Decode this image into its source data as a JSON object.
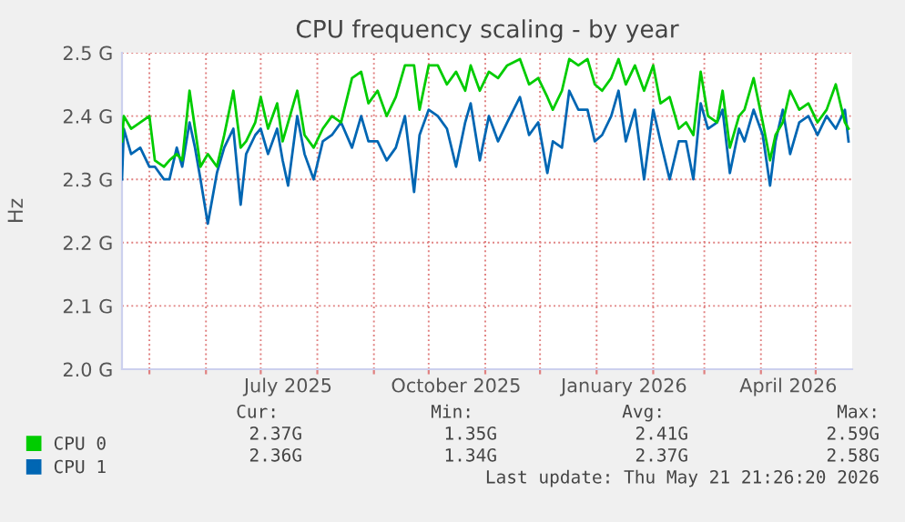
{
  "chart_data": {
    "type": "line",
    "title": "CPU frequency scaling - by year",
    "ylabel": "Hz",
    "x": [
      "2025-04-16",
      "2025-04-17",
      "2025-04-21",
      "2025-04-26",
      "2025-05-01",
      "2025-05-04",
      "2025-05-09",
      "2025-05-12",
      "2025-05-16",
      "2025-05-19",
      "2025-05-23",
      "2025-05-26",
      "2025-05-29",
      "2025-06-02",
      "2025-06-07",
      "2025-06-11",
      "2025-06-16",
      "2025-06-20",
      "2025-06-23",
      "2025-06-28",
      "2025-07-01",
      "2025-07-05",
      "2025-07-10",
      "2025-07-13",
      "2025-07-16",
      "2025-07-21",
      "2025-07-25",
      "2025-07-30",
      "2025-08-04",
      "2025-08-09",
      "2025-08-14",
      "2025-08-20",
      "2025-08-25",
      "2025-08-29",
      "2025-09-03",
      "2025-09-08",
      "2025-09-13",
      "2025-09-18",
      "2025-09-23",
      "2025-09-26",
      "2025-10-01",
      "2025-10-06",
      "2025-10-11",
      "2025-10-16",
      "2025-10-21",
      "2025-10-24",
      "2025-10-29",
      "2025-11-03",
      "2025-11-08",
      "2025-11-13",
      "2025-11-20",
      "2025-11-25",
      "2025-11-30",
      "2025-12-05",
      "2025-12-08",
      "2025-12-13",
      "2025-12-17",
      "2025-12-22",
      "2025-12-27",
      "2025-12-31",
      "2026-01-04",
      "2026-01-09",
      "2026-01-13",
      "2026-01-17",
      "2026-01-22",
      "2026-01-27",
      "2026-02-01",
      "2026-02-05",
      "2026-02-10",
      "2026-02-15",
      "2026-02-19",
      "2026-02-23",
      "2026-02-27",
      "2026-03-03",
      "2026-03-08",
      "2026-03-11",
      "2026-03-15",
      "2026-03-20",
      "2026-03-23",
      "2026-03-28",
      "2026-04-02",
      "2026-04-06",
      "2026-04-09",
      "2026-04-13",
      "2026-04-17",
      "2026-04-22",
      "2026-04-27",
      "2026-05-02",
      "2026-05-07",
      "2026-05-12",
      "2026-05-17",
      "2026-05-19"
    ],
    "series": [
      {
        "name": "CPU 0",
        "color": "#00cc00",
        "values": [
          2.36,
          2.4,
          2.38,
          2.39,
          2.4,
          2.33,
          2.32,
          2.33,
          2.34,
          2.33,
          2.44,
          2.38,
          2.32,
          2.34,
          2.32,
          2.37,
          2.44,
          2.35,
          2.36,
          2.39,
          2.43,
          2.38,
          2.42,
          2.36,
          2.39,
          2.44,
          2.37,
          2.35,
          2.38,
          2.4,
          2.39,
          2.46,
          2.47,
          2.42,
          2.44,
          2.4,
          2.43,
          2.48,
          2.48,
          2.41,
          2.48,
          2.48,
          2.45,
          2.47,
          2.44,
          2.48,
          2.44,
          2.47,
          2.46,
          2.48,
          2.49,
          2.45,
          2.46,
          2.43,
          2.41,
          2.44,
          2.49,
          2.48,
          2.49,
          2.45,
          2.44,
          2.46,
          2.49,
          2.45,
          2.48,
          2.44,
          2.48,
          2.42,
          2.43,
          2.38,
          2.39,
          2.37,
          2.47,
          2.4,
          2.39,
          2.44,
          2.35,
          2.4,
          2.41,
          2.46,
          2.39,
          2.33,
          2.37,
          2.39,
          2.44,
          2.41,
          2.42,
          2.39,
          2.41,
          2.45,
          2.39,
          2.38
        ]
      },
      {
        "name": "CPU 1",
        "color": "#0066b3",
        "values": [
          2.3,
          2.38,
          2.34,
          2.35,
          2.32,
          2.32,
          2.3,
          2.3,
          2.35,
          2.32,
          2.39,
          2.35,
          2.3,
          2.23,
          2.31,
          2.35,
          2.38,
          2.26,
          2.34,
          2.37,
          2.38,
          2.34,
          2.38,
          2.33,
          2.29,
          2.4,
          2.34,
          2.3,
          2.36,
          2.37,
          2.39,
          2.35,
          2.4,
          2.36,
          2.36,
          2.33,
          2.35,
          2.4,
          2.28,
          2.37,
          2.41,
          2.4,
          2.38,
          2.32,
          2.39,
          2.42,
          2.33,
          2.4,
          2.36,
          2.39,
          2.43,
          2.37,
          2.39,
          2.31,
          2.36,
          2.35,
          2.44,
          2.41,
          2.41,
          2.36,
          2.37,
          2.4,
          2.44,
          2.36,
          2.41,
          2.3,
          2.41,
          2.36,
          2.3,
          2.36,
          2.36,
          2.3,
          2.42,
          2.38,
          2.39,
          2.41,
          2.31,
          2.38,
          2.36,
          2.41,
          2.37,
          2.29,
          2.36,
          2.41,
          2.34,
          2.39,
          2.4,
          2.37,
          2.4,
          2.38,
          2.41,
          2.36
        ]
      }
    ],
    "xlim": [
      "2025-04-16",
      "2026-05-21"
    ],
    "xticks": [
      {
        "value": "2025-05-01",
        "label": null
      },
      {
        "value": "2025-06-01",
        "label": null
      },
      {
        "value": "2025-07-01",
        "label": null
      },
      {
        "value": "2025-08-01",
        "label": null
      },
      {
        "value": "2025-09-01",
        "label": null
      },
      {
        "value": "2025-10-01",
        "label": null
      },
      {
        "value": "2025-11-01",
        "label": null
      },
      {
        "value": "2025-12-01",
        "label": null
      },
      {
        "value": "2026-01-01",
        "label": null
      },
      {
        "value": "2026-02-01",
        "label": null
      },
      {
        "value": "2026-03-01",
        "label": null
      },
      {
        "value": "2026-04-01",
        "label": null
      },
      {
        "value": "2026-05-01",
        "label": null
      },
      {
        "value": "2025-07-16",
        "label": "July 2025"
      },
      {
        "value": "2025-10-16",
        "label": "October 2025"
      },
      {
        "value": "2026-01-16",
        "label": "January 2026"
      },
      {
        "value": "2026-04-16",
        "label": "April 2026"
      }
    ],
    "ylim": [
      2.0,
      2.5
    ],
    "yticks": [
      {
        "value": 2.0,
        "label": "2.0 G"
      },
      {
        "value": 2.1,
        "label": "2.1 G"
      },
      {
        "value": 2.2,
        "label": "2.2 G"
      },
      {
        "value": 2.3,
        "label": "2.3 G"
      },
      {
        "value": 2.4,
        "label": "2.4 G"
      },
      {
        "value": 2.5,
        "label": "2.5 G"
      }
    ],
    "grid": true,
    "legend": "bottom left",
    "marker": "none",
    "line_style": "solid",
    "annotations": [
      "Cur:",
      "Min:",
      "Avg:",
      "Max:",
      "2.37G",
      "1.35G",
      "2.41G",
      "2.59G",
      "2.36G",
      "1.34G",
      "2.37G",
      "2.58G",
      "Last update: Thu May 21 21:26:20 2026"
    ]
  }
}
